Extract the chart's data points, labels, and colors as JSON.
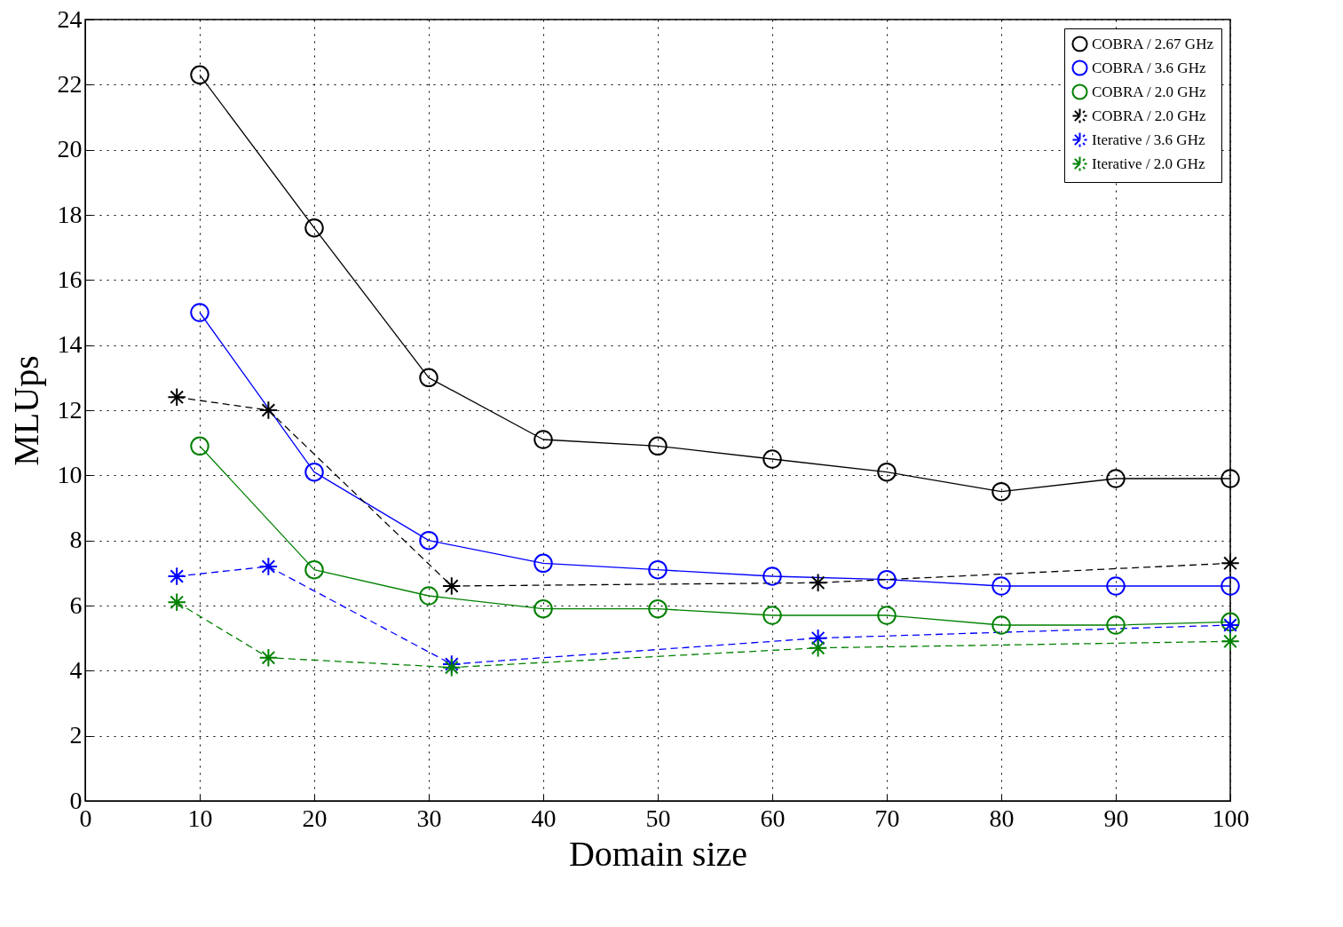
{
  "chart_data": {
    "type": "line",
    "xlabel": "Domain size",
    "ylabel": "MLUps",
    "xlim": [
      0,
      100
    ],
    "xticks": [
      0,
      10,
      20,
      30,
      40,
      50,
      60,
      70,
      80,
      90,
      100
    ],
    "ylim": [
      0,
      24
    ],
    "yticks": [
      0,
      2,
      4,
      6,
      8,
      10,
      12,
      14,
      16,
      18,
      20,
      22,
      24
    ],
    "grid": true,
    "legend": "top right",
    "series": [
      {
        "name": "COBRA / 2.67 GHz",
        "color": "#000000",
        "marker": "circle",
        "line_style": "solid",
        "x": [
          10,
          20,
          30,
          40,
          50,
          60,
          70,
          80,
          90,
          100
        ],
        "values": [
          22.3,
          17.6,
          13.0,
          11.1,
          10.9,
          10.5,
          10.1,
          9.5,
          9.9,
          9.9
        ]
      },
      {
        "name": "COBRA / 3.6 GHz",
        "color": "#0000ff",
        "marker": "circle",
        "line_style": "solid",
        "x": [
          10,
          20,
          30,
          40,
          50,
          60,
          70,
          80,
          90,
          100
        ],
        "values": [
          15.0,
          10.1,
          8.0,
          7.3,
          7.1,
          6.9,
          6.8,
          6.6,
          6.6,
          6.6
        ]
      },
      {
        "name": "COBRA / 2.0 GHz",
        "color": "#008000",
        "marker": "circle",
        "line_style": "solid",
        "x": [
          10,
          20,
          30,
          40,
          50,
          60,
          70,
          80,
          90,
          100
        ],
        "values": [
          10.9,
          7.1,
          6.3,
          5.9,
          5.9,
          5.7,
          5.7,
          5.4,
          5.4,
          5.5
        ]
      },
      {
        "name": "COBRA / 2.0 GHz",
        "color": "#000000",
        "marker": "cross",
        "line_style": "dashed",
        "x": [
          8,
          16,
          32,
          64,
          100
        ],
        "values": [
          12.4,
          12.0,
          6.6,
          6.7,
          7.3
        ]
      },
      {
        "name": "Iterative / 3.6 GHz",
        "color": "#0000ff",
        "marker": "cross",
        "line_style": "dashed",
        "x": [
          8,
          16,
          32,
          64,
          100
        ],
        "values": [
          6.9,
          7.2,
          4.2,
          5.0,
          5.4
        ]
      },
      {
        "name": "Iterative / 2.0 GHz",
        "color": "#008000",
        "marker": "cross",
        "line_style": "dashed",
        "x": [
          8,
          16,
          32,
          64,
          100
        ],
        "values": [
          6.1,
          4.4,
          4.1,
          4.7,
          4.9
        ]
      }
    ]
  }
}
